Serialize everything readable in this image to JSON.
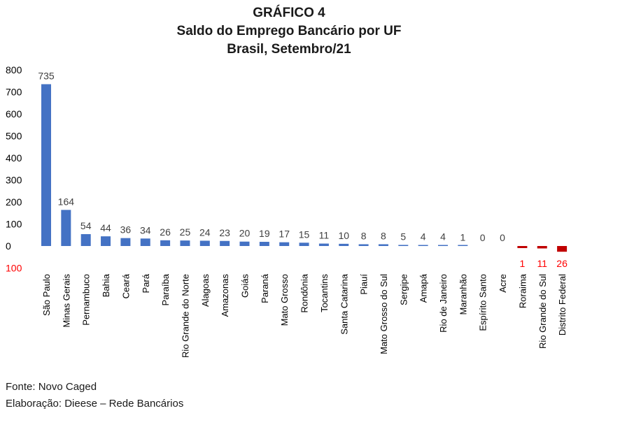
{
  "chart_data": {
    "type": "bar",
    "title_lines": [
      "GRÁFICO 4",
      "Saldo do Emprego Bancário por UF",
      "Brasil, Setembro/21"
    ],
    "xlabel": "",
    "ylabel": "",
    "ylim": [
      -100,
      800
    ],
    "yticks": [
      {
        "value": 800,
        "label": "800"
      },
      {
        "value": 700,
        "label": "700"
      },
      {
        "value": 600,
        "label": "600"
      },
      {
        "value": 500,
        "label": "500"
      },
      {
        "value": 400,
        "label": "400"
      },
      {
        "value": 300,
        "label": "300"
      },
      {
        "value": 200,
        "label": "200"
      },
      {
        "value": 100,
        "label": "100"
      },
      {
        "value": 0,
        "label": "0"
      },
      {
        "value": -100,
        "label": "100"
      }
    ],
    "grid": false,
    "categories": [
      "São Paulo",
      "Minas Gerais",
      "Pernambuco",
      "Bahia",
      "Ceará",
      "Pará",
      "Paraíba",
      "Rio Grande do Norte",
      "Alagoas",
      "Amazonas",
      "Goiás",
      "Paraná",
      "Mato Grosso",
      "Rondônia",
      "Tocantins",
      "Santa Catarina",
      "Piauí",
      "Mato Grosso do Sul",
      "Sergipe",
      "Amapá",
      "Rio de Janeiro",
      "Maranhão",
      "Espírito Santo",
      "Acre",
      "Roraima",
      "Rio Grande do Sul",
      "Distrito Federal"
    ],
    "values": [
      735,
      164,
      54,
      44,
      36,
      34,
      26,
      25,
      24,
      23,
      20,
      19,
      17,
      15,
      11,
      10,
      8,
      8,
      5,
      4,
      4,
      1,
      0,
      0,
      -1,
      -11,
      -26
    ],
    "data_labels": [
      "735",
      "164",
      "54",
      "44",
      "36",
      "34",
      "26",
      "25",
      "24",
      "23",
      "20",
      "19",
      "17",
      "15",
      "11",
      "10",
      "8",
      "8",
      "5",
      "4",
      "4",
      "1",
      "0",
      "0",
      "1",
      "11",
      "26"
    ],
    "colors": {
      "positive": "#4472c4",
      "negative": "#c00000",
      "negative_label": "#ff0000",
      "text": "#404040"
    }
  },
  "footer": {
    "source": "Fonte: Novo Caged",
    "elaboration": "Elaboração: Dieese – Rede Bancários"
  }
}
